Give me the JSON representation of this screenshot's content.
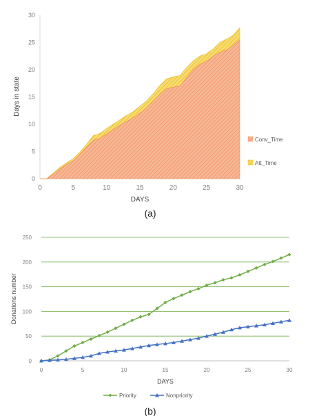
{
  "chart_data": [
    {
      "type": "area",
      "stacked": true,
      "caption": "(a)",
      "xlabel": "DAYS",
      "ylabel": "Days in state",
      "xlim": [
        0,
        30
      ],
      "ylim": [
        0,
        30
      ],
      "x_ticks": [
        0,
        5,
        10,
        15,
        20,
        25,
        30
      ],
      "y_ticks": [
        0,
        5,
        10,
        15,
        20,
        25,
        30
      ],
      "grid": false,
      "legend": "right",
      "x": [
        0,
        1,
        2,
        3,
        4,
        5,
        6,
        7,
        8,
        9,
        10,
        11,
        12,
        13,
        14,
        15,
        16,
        17,
        18,
        19,
        20,
        21,
        22,
        23,
        24,
        25,
        26,
        27,
        28,
        29,
        30
      ],
      "series": [
        {
          "name": "Conv_Time",
          "color": "#f4a27a",
          "fill": "hatched",
          "values": [
            0,
            0,
            0.8,
            1.8,
            2.6,
            3.3,
            4.5,
            5.8,
            7.0,
            7.4,
            8.2,
            9.0,
            9.8,
            10.5,
            11.2,
            12.0,
            13.0,
            14.2,
            15.5,
            16.5,
            16.8,
            17.0,
            18.5,
            20.0,
            21.0,
            21.5,
            22.5,
            23.2,
            23.6,
            24.5,
            25.5
          ]
        },
        {
          "name": "Att_Time",
          "color": "#f2c530",
          "fill": "hatched",
          "values": [
            0,
            0,
            0.2,
            0.3,
            0.3,
            0.4,
            0.4,
            0.5,
            0.9,
            0.9,
            1.0,
            1.0,
            1.0,
            1.1,
            1.1,
            1.3,
            1.3,
            1.4,
            1.6,
            1.8,
            1.9,
            1.9,
            1.9,
            1.6,
            1.5,
            1.4,
            1.3,
            1.8,
            2.0,
            1.8,
            2.2
          ]
        }
      ]
    },
    {
      "type": "line",
      "caption": "(b)",
      "xlabel": "DAYS",
      "ylabel": "Donations number",
      "xlim": [
        0,
        30
      ],
      "ylim": [
        0,
        250
      ],
      "x_ticks": [
        0,
        5,
        10,
        15,
        20,
        25,
        30
      ],
      "y_ticks": [
        0,
        50,
        100,
        150,
        200,
        250
      ],
      "grid": true,
      "legend": "bottom",
      "x": [
        0,
        1,
        2,
        3,
        4,
        5,
        6,
        7,
        8,
        9,
        10,
        11,
        12,
        13,
        14,
        15,
        16,
        17,
        18,
        19,
        20,
        21,
        22,
        23,
        24,
        25,
        26,
        27,
        28,
        29,
        30
      ],
      "series": [
        {
          "name": "Priority",
          "color": "#70ad47",
          "marker": "diamond",
          "values": [
            0,
            2,
            10,
            20,
            30,
            37,
            44,
            51,
            58,
            66,
            74,
            82,
            89,
            94,
            106,
            118,
            126,
            133,
            140,
            146,
            153,
            158,
            164,
            168,
            174,
            181,
            188,
            195,
            201,
            208,
            215
          ]
        },
        {
          "name": "Nonpriority",
          "color": "#4472c4",
          "marker": "triangle",
          "values": [
            0,
            1,
            2,
            3,
            5,
            7,
            10,
            15,
            18,
            20,
            22,
            25,
            28,
            31,
            33,
            35,
            37,
            40,
            43,
            46,
            50,
            54,
            58,
            63,
            67,
            69,
            71,
            73,
            76,
            79,
            82
          ]
        }
      ]
    }
  ]
}
